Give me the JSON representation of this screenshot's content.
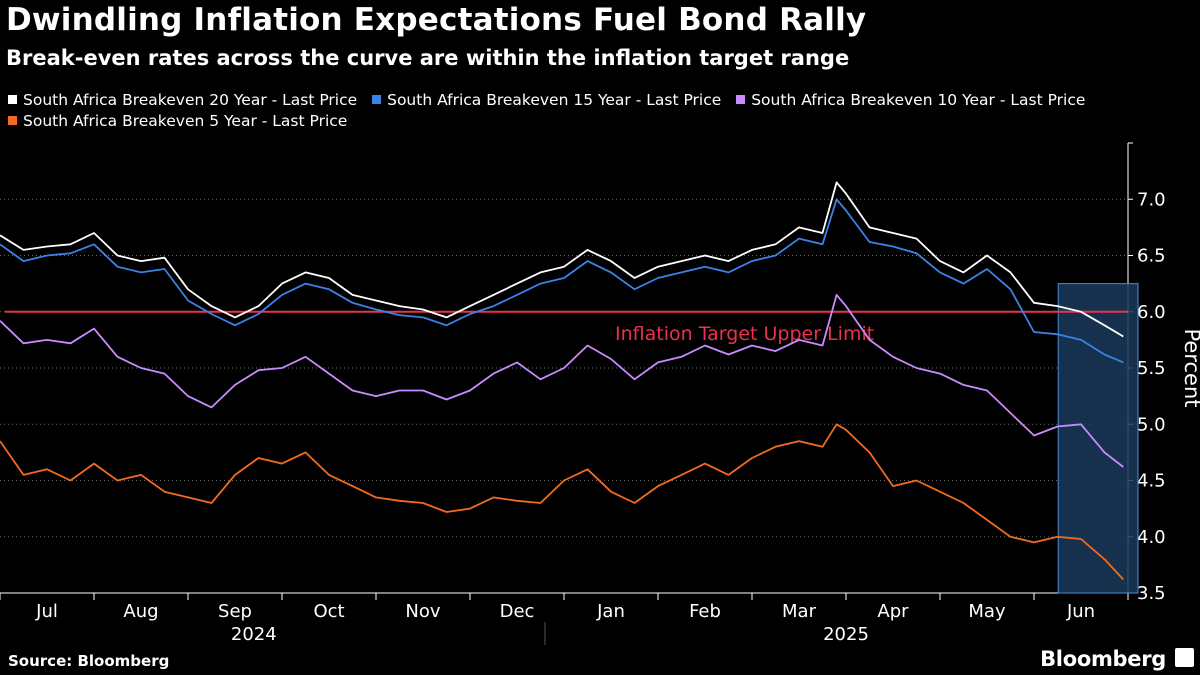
{
  "header": {
    "title": "Dwindling Inflation Expectations Fuel Bond Rally",
    "subtitle": "Break-even rates across the curve are within the inflation target range"
  },
  "footer": {
    "source": "Source: Bloomberg",
    "brand": "Bloomberg"
  },
  "colors": {
    "background": "#000000",
    "series_20y": "#ffffff",
    "series_15y": "#3b82e6",
    "series_10y": "#c98bff",
    "series_5y": "#f26b21",
    "target_line": "#e8324f",
    "highlight_fill": "#1a3a5c",
    "highlight_border": "#4a8fd6"
  },
  "chart_data": {
    "type": "line",
    "title": "Dwindling Inflation Expectations Fuel Bond Rally",
    "subtitle": "Break-even rates across the curve are within the inflation target range",
    "xlabel": "",
    "ylabel": "Percent",
    "ylim": [
      3.5,
      7.5
    ],
    "yticks": [
      3.5,
      4.0,
      4.5,
      5.0,
      5.5,
      6.0,
      6.5,
      7.0
    ],
    "ytick_labels": [
      "3.5",
      "4.0",
      "4.5",
      "5.0",
      "5.5",
      "6.0",
      "6.5",
      "7.0"
    ],
    "x_start": "2024-07-01",
    "x_end": "2025-07-01",
    "months": [
      {
        "label": "Jul",
        "index": 0
      },
      {
        "label": "Aug",
        "index": 1
      },
      {
        "label": "Sep",
        "index": 2
      },
      {
        "label": "Oct",
        "index": 3
      },
      {
        "label": "Nov",
        "index": 4
      },
      {
        "label": "Dec",
        "index": 5
      },
      {
        "label": "Jan",
        "index": 6
      },
      {
        "label": "Feb",
        "index": 7
      },
      {
        "label": "Mar",
        "index": 8
      },
      {
        "label": "Apr",
        "index": 9
      },
      {
        "label": "May",
        "index": 10
      },
      {
        "label": "Jun",
        "index": 11
      }
    ],
    "years": [
      {
        "label": "2024",
        "month_index": 2.7
      },
      {
        "label": "2025",
        "month_index": 9.0
      }
    ],
    "reference_line": {
      "value": 6.0,
      "label": "Inflation Target Upper Limit"
    },
    "highlight": {
      "from_month": 11.3,
      "to_month": 12.0,
      "ymin": 3.5,
      "ymax": 6.25
    },
    "legend_position": "top",
    "x_months": [
      0.0,
      0.25,
      0.5,
      0.75,
      1.0,
      1.25,
      1.5,
      1.75,
      2.0,
      2.25,
      2.5,
      2.75,
      3.0,
      3.25,
      3.5,
      3.75,
      4.0,
      4.25,
      4.5,
      4.75,
      5.0,
      5.25,
      5.5,
      5.75,
      6.0,
      6.25,
      6.5,
      6.75,
      7.0,
      7.25,
      7.5,
      7.75,
      8.0,
      8.25,
      8.5,
      8.75,
      8.9,
      9.0,
      9.25,
      9.5,
      9.75,
      10.0,
      10.25,
      10.5,
      10.75,
      11.0,
      11.25,
      11.5,
      11.75,
      11.95
    ],
    "series": [
      {
        "name": "South Africa Breakeven 20 Year - Last Price",
        "color": "#ffffff",
        "values": [
          6.68,
          6.55,
          6.58,
          6.6,
          6.7,
          6.5,
          6.45,
          6.48,
          6.2,
          6.05,
          5.95,
          6.05,
          6.25,
          6.35,
          6.3,
          6.15,
          6.1,
          6.05,
          6.02,
          5.95,
          6.05,
          6.15,
          6.25,
          6.35,
          6.4,
          6.55,
          6.45,
          6.3,
          6.4,
          6.45,
          6.5,
          6.45,
          6.55,
          6.6,
          6.75,
          6.7,
          7.15,
          7.05,
          6.75,
          6.7,
          6.65,
          6.45,
          6.35,
          6.5,
          6.35,
          6.08,
          6.05,
          6.0,
          5.88,
          5.78
        ]
      },
      {
        "name": "South Africa Breakeven 15 Year - Last Price",
        "color": "#3b82e6",
        "values": [
          6.6,
          6.45,
          6.5,
          6.52,
          6.6,
          6.4,
          6.35,
          6.38,
          6.1,
          5.98,
          5.88,
          5.98,
          6.15,
          6.25,
          6.2,
          6.08,
          6.02,
          5.97,
          5.95,
          5.88,
          5.98,
          6.05,
          6.15,
          6.25,
          6.3,
          6.45,
          6.35,
          6.2,
          6.3,
          6.35,
          6.4,
          6.35,
          6.45,
          6.5,
          6.65,
          6.6,
          7.0,
          6.9,
          6.62,
          6.58,
          6.52,
          6.35,
          6.25,
          6.38,
          6.2,
          5.82,
          5.8,
          5.75,
          5.62,
          5.55
        ]
      },
      {
        "name": "South Africa Breakeven 10 Year - Last Price",
        "color": "#c98bff",
        "values": [
          5.92,
          5.72,
          5.75,
          5.72,
          5.85,
          5.6,
          5.5,
          5.45,
          5.25,
          5.15,
          5.35,
          5.48,
          5.5,
          5.6,
          5.45,
          5.3,
          5.25,
          5.3,
          5.3,
          5.22,
          5.3,
          5.45,
          5.55,
          5.4,
          5.5,
          5.7,
          5.58,
          5.4,
          5.55,
          5.6,
          5.7,
          5.62,
          5.7,
          5.65,
          5.75,
          5.7,
          6.15,
          6.05,
          5.75,
          5.6,
          5.5,
          5.45,
          5.35,
          5.3,
          5.1,
          4.9,
          4.98,
          5.0,
          4.75,
          4.62
        ]
      },
      {
        "name": "South Africa Breakeven 5 Year - Last Price",
        "color": "#f26b21",
        "values": [
          4.85,
          4.55,
          4.6,
          4.5,
          4.65,
          4.5,
          4.55,
          4.4,
          4.35,
          4.3,
          4.55,
          4.7,
          4.65,
          4.75,
          4.55,
          4.45,
          4.35,
          4.32,
          4.3,
          4.22,
          4.25,
          4.35,
          4.32,
          4.3,
          4.5,
          4.6,
          4.4,
          4.3,
          4.45,
          4.55,
          4.65,
          4.55,
          4.7,
          4.8,
          4.85,
          4.8,
          5.0,
          4.95,
          4.75,
          4.45,
          4.5,
          4.4,
          4.3,
          4.15,
          4.0,
          3.95,
          4.0,
          3.98,
          3.8,
          3.62
        ]
      }
    ]
  }
}
